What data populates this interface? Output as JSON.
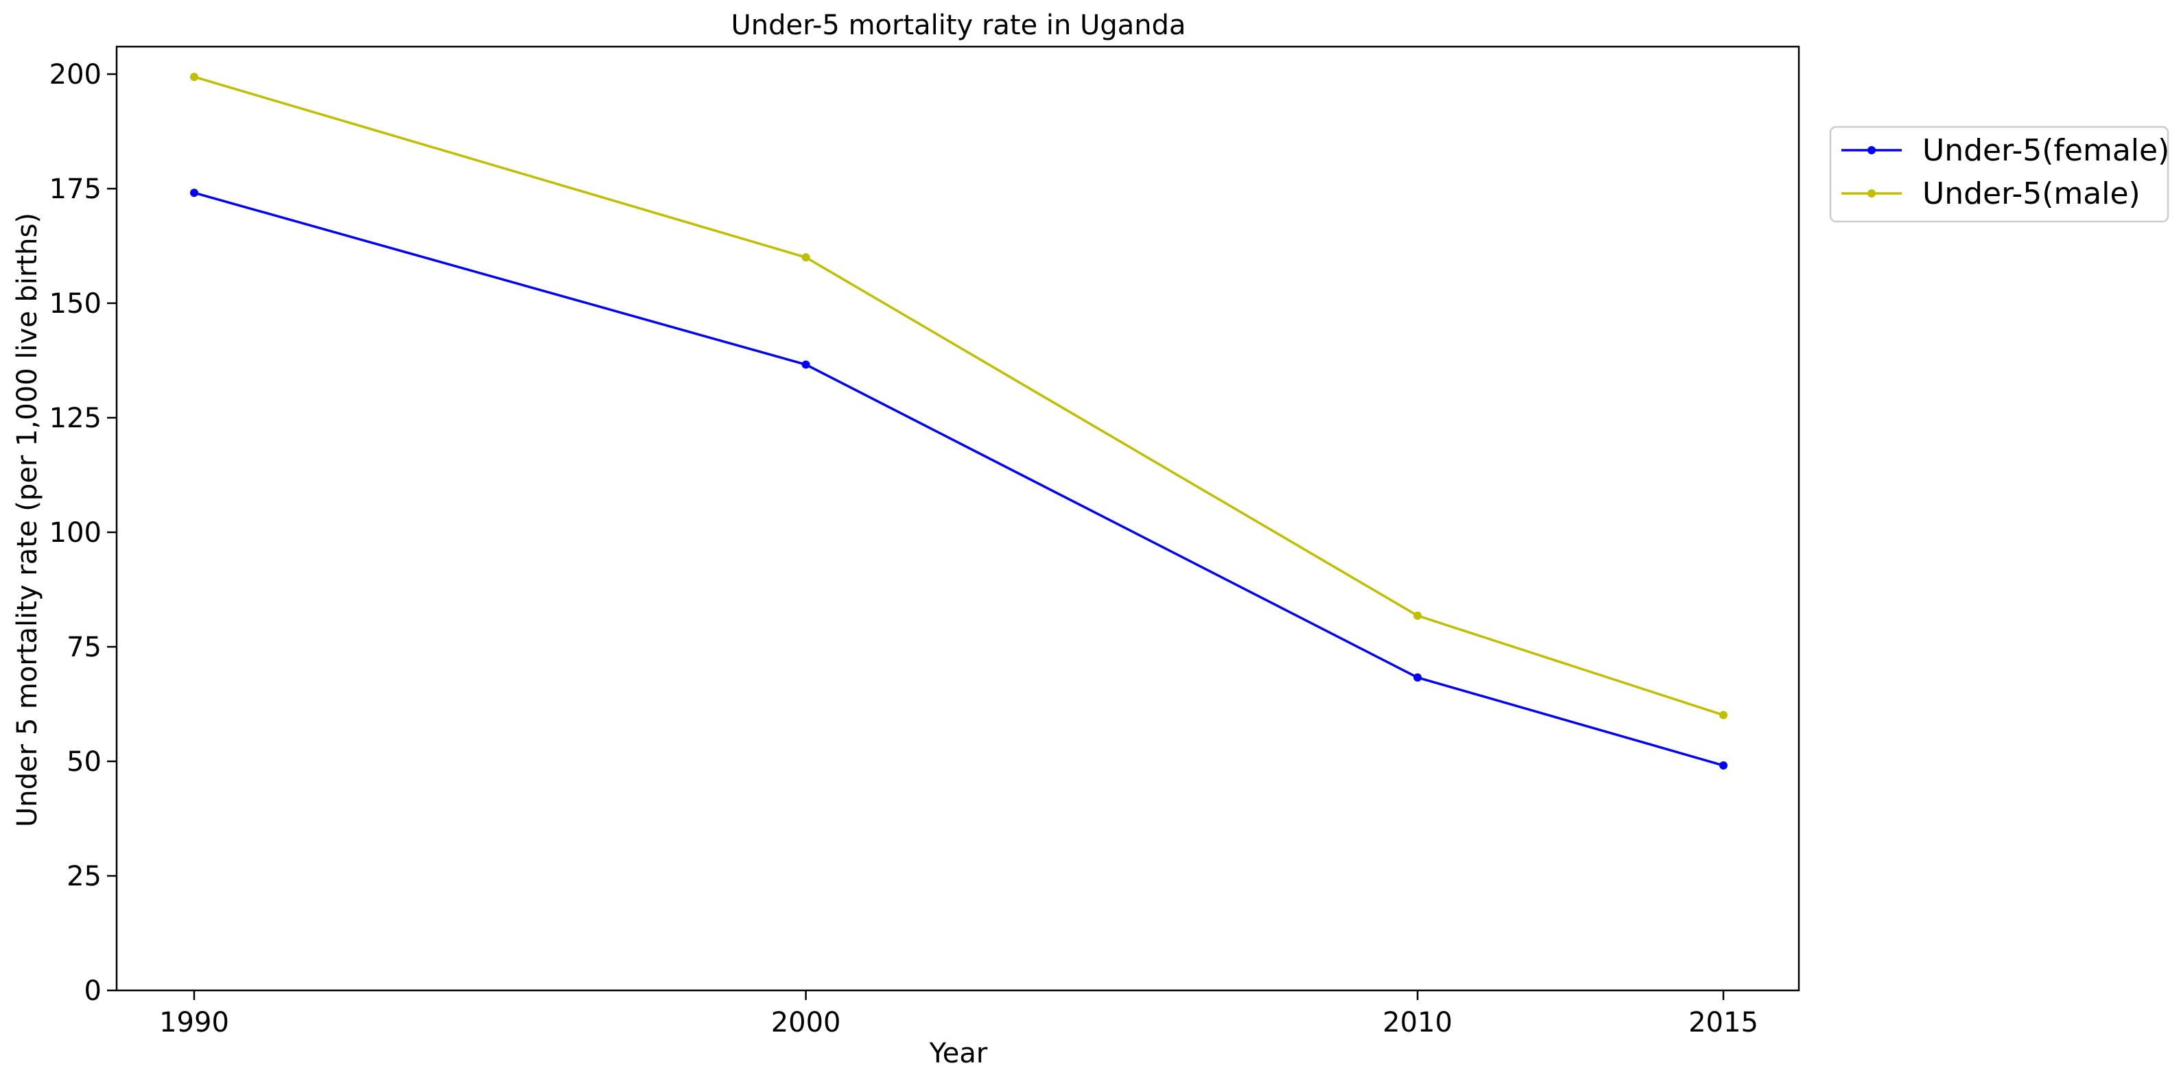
{
  "chart_data": {
    "type": "line",
    "title": "Under-5 mortality rate in Uganda",
    "xlabel": "Year",
    "ylabel": "Under 5 mortality rate (per 1,000 live births)",
    "categories": [
      "1990",
      "2000",
      "2010",
      "2015"
    ],
    "ylim": [
      0,
      206
    ],
    "yticks": [
      0,
      25,
      50,
      75,
      100,
      125,
      150,
      175,
      200
    ],
    "grid": false,
    "legend_position": "upper-right-outside",
    "series": [
      {
        "name": "Under-5(female)",
        "color": "#0000ff",
        "values": [
          174.1,
          136.6,
          68.3,
          49.1
        ]
      },
      {
        "name": "Under-5(male)",
        "color": "#bfbf00",
        "values": [
          199.4,
          160.0,
          81.8,
          60.1
        ]
      }
    ]
  }
}
